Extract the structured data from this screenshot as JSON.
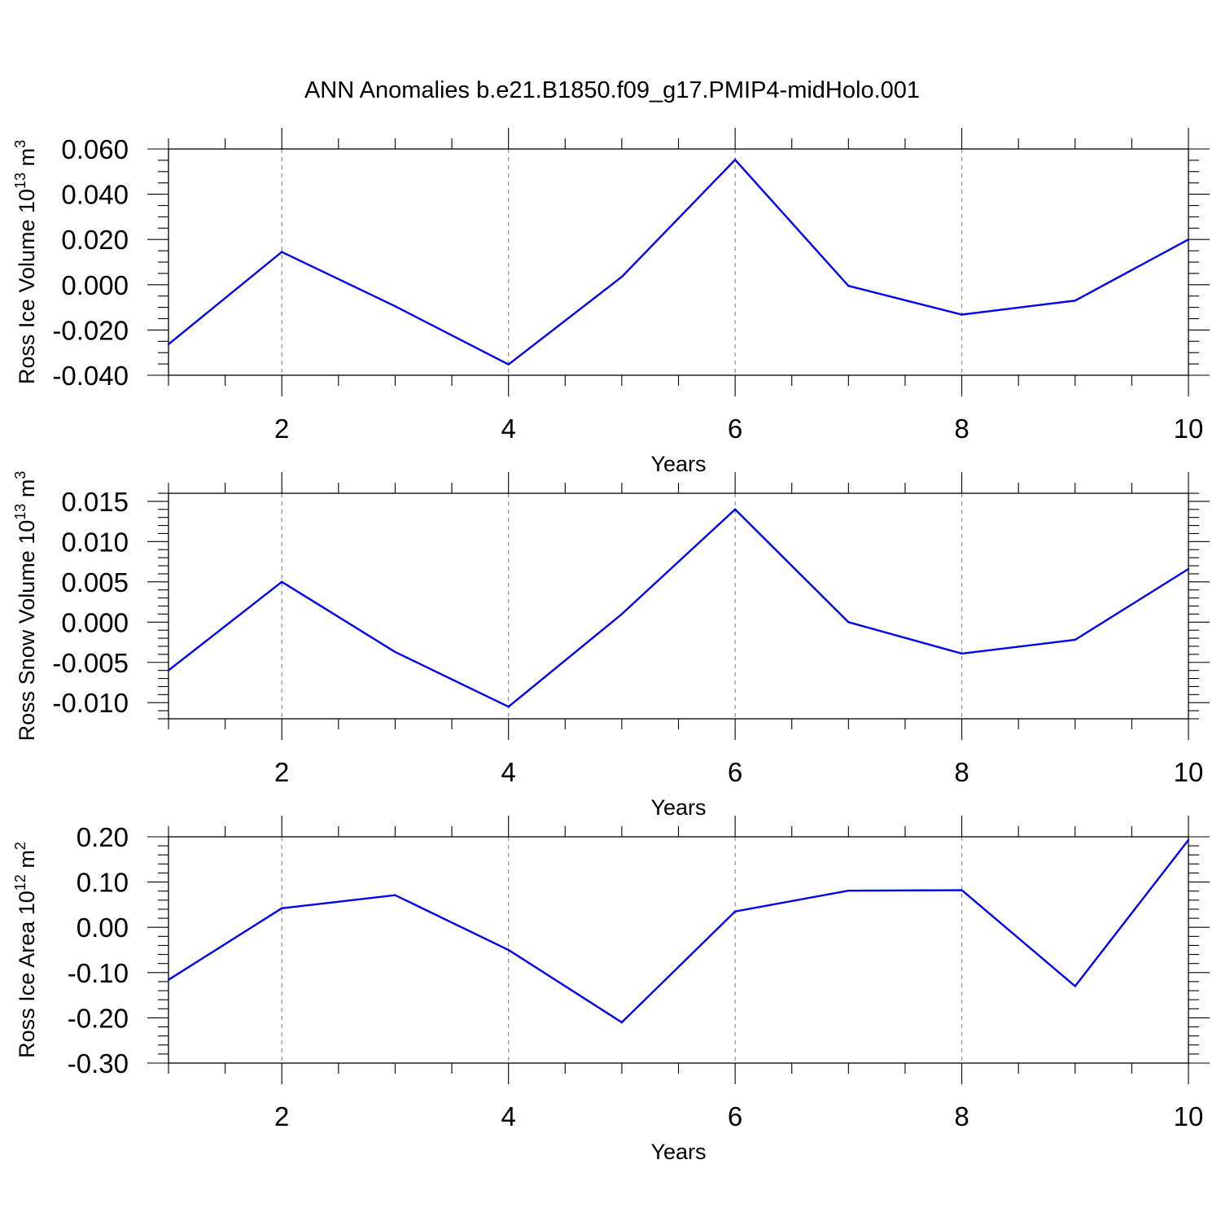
{
  "figure": {
    "title": "ANN Anomalies b.e21.B1850.f09_g17.PMIP4-midHolo.001"
  },
  "colors": {
    "series": "#0000ee",
    "grid": "#8c8c8c",
    "frame": "#000000"
  },
  "chart_data": [
    {
      "type": "line",
      "title": "",
      "xlabel": "Years",
      "ylabel_main": "Ross Ice Volume 10",
      "ylabel_exp": "13",
      "ylabel_unit": " m",
      "ylabel_unit_exp": "3",
      "xlim": [
        1,
        10
      ],
      "ylim": [
        -0.04,
        0.06
      ],
      "xticks": [
        2,
        4,
        6,
        8,
        10
      ],
      "xtick_labels": [
        "2",
        "4",
        "6",
        "8",
        "10"
      ],
      "yticks": [
        -0.04,
        -0.02,
        0.0,
        0.02,
        0.04,
        0.06
      ],
      "ytick_labels": [
        "-0.040",
        "-0.020",
        "0.000",
        "0.020",
        "0.040",
        "0.060"
      ],
      "yminor_step": 0.005,
      "grid": "x-major dashed",
      "x": [
        1,
        2,
        3,
        4,
        5,
        6,
        7,
        8,
        9,
        10
      ],
      "y": [
        -0.0263,
        0.0145,
        -0.0095,
        -0.0352,
        0.0035,
        0.0552,
        -0.0005,
        -0.0132,
        -0.007,
        0.02
      ]
    },
    {
      "type": "line",
      "title": "",
      "xlabel": "Years",
      "ylabel_main": "Ross Snow Volume 10",
      "ylabel_exp": "13",
      "ylabel_unit": " m",
      "ylabel_unit_exp": "3",
      "xlim": [
        1,
        10
      ],
      "ylim": [
        -0.012,
        0.016
      ],
      "xticks": [
        2,
        4,
        6,
        8,
        10
      ],
      "xtick_labels": [
        "2",
        "4",
        "6",
        "8",
        "10"
      ],
      "yticks": [
        -0.01,
        -0.005,
        0.0,
        0.005,
        0.01,
        0.015
      ],
      "ytick_labels": [
        "-0.010",
        "-0.005",
        "0.000",
        "0.005",
        "0.010",
        "0.015"
      ],
      "yminor_step": 0.001,
      "grid": "x-major dashed",
      "x": [
        1,
        2,
        3,
        4,
        5,
        6,
        7,
        8,
        9,
        10
      ],
      "y": [
        -0.006,
        0.005,
        -0.0037,
        -0.0105,
        0.001,
        0.014,
        0.0,
        -0.0039,
        -0.0022,
        0.0066
      ]
    },
    {
      "type": "line",
      "title": "",
      "xlabel": "Years",
      "ylabel_main": "Ross Ice Area 10",
      "ylabel_exp": "12",
      "ylabel_unit": " m",
      "ylabel_unit_exp": "2",
      "xlim": [
        1,
        10
      ],
      "ylim": [
        -0.3,
        0.2
      ],
      "xticks": [
        2,
        4,
        6,
        8,
        10
      ],
      "xtick_labels": [
        "2",
        "4",
        "6",
        "8",
        "10"
      ],
      "yticks": [
        -0.3,
        -0.2,
        -0.1,
        0.0,
        0.1,
        0.2
      ],
      "ytick_labels": [
        "-0.30",
        "-0.20",
        "-0.10",
        "0.00",
        "0.10",
        "0.20"
      ],
      "yminor_step": 0.02,
      "grid": "x-major dashed",
      "x": [
        1,
        2,
        3,
        4,
        5,
        6,
        7,
        8,
        9,
        10
      ],
      "y": [
        -0.116,
        0.042,
        0.071,
        -0.05,
        -0.21,
        0.035,
        0.081,
        0.082,
        -0.13,
        0.193
      ]
    }
  ]
}
